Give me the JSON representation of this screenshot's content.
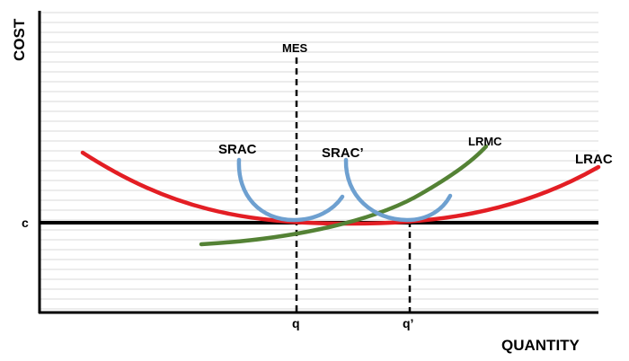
{
  "diagram": {
    "labels": {
      "y_axis": "COST",
      "x_axis": "QUANTITY",
      "mes": "MES",
      "c": "c",
      "q": "q",
      "q_prime": "q’",
      "srac": "SRAC",
      "srac_prime": "SRAC’",
      "lrmc": "LRMC",
      "lrac": "LRAC"
    },
    "colors": {
      "lrac": "#e31e24",
      "srac": "#6ea0d0",
      "lrmc": "#548235",
      "axis": "#000000",
      "grid": "#d9d9d9"
    }
  }
}
